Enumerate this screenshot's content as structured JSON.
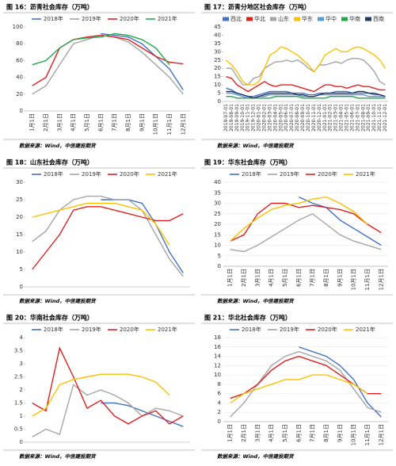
{
  "chart_data": [
    {
      "type": "line",
      "title": "图 16：沥青社会库存（万吨）",
      "source": "数据来源：Wind，中信建投期货",
      "categories": [
        "1月1日",
        "2月1日",
        "3月1日",
        "4月1日",
        "5月1日",
        "6月1日",
        "7月1日",
        "8月1日",
        "9月1日",
        "10月1日",
        "11月1日",
        "12月1日"
      ],
      "series": [
        {
          "name": "2018年",
          "color": "#4472c4",
          "values": [
            null,
            null,
            null,
            null,
            null,
            92,
            90,
            88,
            80,
            65,
            50,
            25
          ]
        },
        {
          "name": "2019年",
          "color": "#a5a5a5",
          "values": [
            20,
            30,
            55,
            80,
            85,
            90,
            88,
            82,
            70,
            55,
            40,
            20
          ]
        },
        {
          "name": "2020年",
          "color": "#e02020",
          "values": [
            30,
            40,
            75,
            85,
            88,
            90,
            88,
            85,
            75,
            65,
            58,
            56
          ]
        },
        {
          "name": "2021年",
          "color": "#22a84a",
          "values": [
            55,
            60,
            75,
            85,
            87,
            88,
            92,
            90,
            85,
            75,
            55,
            null
          ]
        }
      ],
      "ylim": [
        0,
        100
      ],
      "yticks": [
        0,
        20,
        40,
        60,
        80,
        100
      ],
      "grid": false,
      "legend": "top"
    },
    {
      "type": "line",
      "title": "图 17：沥青分地区社会库存（万吨）",
      "source": "数据来源：Wind，中信建投期货",
      "categories": [
        "2019-07-01",
        "2019-08-01",
        "2019-09-01",
        "2019-10-01",
        "2019-11-01",
        "2019-12-01",
        "2020-01-01",
        "2020-02-01",
        "2020-03-01",
        "2020-04-01",
        "2020-05-01",
        "2020-06-01",
        "2020-07-01",
        "2020-08-01",
        "2020-09-01",
        "2020-10-01",
        "2020-11-01",
        "2020-12-01",
        "2021-01-01",
        "2021-02-01",
        "2021-03-01",
        "2021-04-01",
        "2021-05-01",
        "2021-06-01",
        "2021-07-01",
        "2021-08-01",
        "2021-09-01",
        "2021-10-01",
        "2021-11-01",
        "2021-12-01"
      ],
      "series": [
        {
          "name": "西北",
          "color": "#4472c4",
          "values": [
            8,
            7,
            5,
            4,
            3,
            3,
            4,
            5,
            6,
            6,
            6,
            6,
            5,
            5,
            5,
            4,
            4,
            5,
            5,
            5,
            6,
            6,
            6,
            5,
            5,
            5,
            5,
            4,
            4,
            3
          ]
        },
        {
          "name": "华北",
          "color": "#e02020",
          "values": [
            15,
            14,
            10,
            8,
            6,
            8,
            10,
            12,
            10,
            9,
            10,
            10,
            10,
            9,
            8,
            7,
            6,
            8,
            10,
            10,
            9,
            9,
            8,
            9,
            10,
            9,
            9,
            8,
            7,
            7
          ]
        },
        {
          "name": "山东",
          "color": "#a5a5a5",
          "values": [
            20,
            20,
            15,
            10,
            10,
            14,
            15,
            20,
            22,
            24,
            24,
            25,
            24,
            25,
            23,
            20,
            18,
            22,
            22,
            23,
            24,
            23,
            25,
            26,
            26,
            25,
            22,
            18,
            12,
            10
          ]
        },
        {
          "name": "华东",
          "color": "#ffc000",
          "values": [
            25,
            22,
            18,
            12,
            10,
            10,
            12,
            20,
            28,
            30,
            33,
            32,
            30,
            28,
            25,
            22,
            18,
            22,
            28,
            30,
            32,
            30,
            30,
            32,
            33,
            32,
            30,
            28,
            25,
            20
          ]
        },
        {
          "name": "华中",
          "color": "#5b9bd5",
          "values": [
            5,
            5,
            4,
            3,
            2,
            2,
            3,
            3,
            4,
            4,
            4,
            4,
            4,
            4,
            3,
            3,
            3,
            4,
            4,
            4,
            4,
            4,
            4,
            4,
            4,
            4,
            3,
            3,
            3,
            3
          ]
        },
        {
          "name": "华南",
          "color": "#22a84a",
          "values": [
            3,
            3,
            2,
            2,
            2,
            2,
            2,
            2,
            2,
            3,
            3,
            3,
            3,
            3,
            2,
            2,
            2,
            2,
            2,
            3,
            3,
            3,
            3,
            3,
            2,
            2,
            2,
            2,
            2,
            2
          ]
        },
        {
          "name": "西南",
          "color": "#203864",
          "values": [
            6,
            6,
            5,
            4,
            3,
            2,
            3,
            4,
            5,
            5,
            5,
            5,
            5,
            4,
            4,
            3,
            3,
            4,
            5,
            5,
            5,
            5,
            5,
            5,
            6,
            6,
            5,
            5,
            4,
            3
          ]
        }
      ],
      "ylim": [
        0,
        45
      ],
      "yticks": [
        0,
        5,
        10,
        15,
        20,
        25,
        30,
        35,
        40,
        45
      ],
      "grid": false,
      "legend": "top"
    },
    {
      "type": "line",
      "title": "图 18：山东社会库存（万吨）",
      "source": "数据来源：Wind，中信建投期货",
      "categories": [
        null,
        null,
        null,
        null,
        null,
        null,
        null,
        null,
        null,
        null,
        null,
        null
      ],
      "series": [
        {
          "name": "2018年",
          "color": "#4472c4",
          "values": [
            null,
            null,
            null,
            null,
            null,
            25,
            25,
            25,
            24,
            18,
            10,
            4
          ]
        },
        {
          "name": "2019年",
          "color": "#a5a5a5",
          "values": [
            13,
            16,
            22,
            25,
            26,
            26,
            25,
            25,
            22,
            15,
            8,
            3
          ]
        },
        {
          "name": "2020年",
          "color": "#e02020",
          "values": [
            5,
            10,
            15,
            22,
            23,
            23,
            22,
            21,
            20,
            19,
            19,
            21
          ]
        },
        {
          "name": "2021年",
          "color": "#ffc000",
          "values": [
            20,
            21,
            22,
            23,
            24,
            24,
            24,
            23,
            22,
            18,
            12,
            null
          ]
        }
      ],
      "ylim": [
        0,
        30
      ],
      "yticks": [
        0,
        5,
        10,
        15,
        20,
        25,
        30
      ],
      "grid": false,
      "legend": "top"
    },
    {
      "type": "line",
      "title": "图 19：华东社会库存（万吨）",
      "source": "数据来源：Wind，中信建投期货",
      "categories": [
        "1月1日",
        "2月1日",
        "3月1日",
        "4月1日",
        "5月1日",
        "6月1日",
        "7月1日",
        "8月1日",
        "9月1日",
        "10月1日",
        "11月1日",
        "12月1日"
      ],
      "series": [
        {
          "name": "2018年",
          "color": "#4472c4",
          "values": [
            null,
            null,
            null,
            null,
            null,
            33,
            30,
            28,
            22,
            18,
            14,
            10
          ]
        },
        {
          "name": "2019年",
          "color": "#a5a5a5",
          "values": [
            8,
            7,
            10,
            14,
            18,
            22,
            25,
            20,
            15,
            12,
            10,
            8
          ]
        },
        {
          "name": "2020年",
          "color": "#e02020",
          "values": [
            12,
            15,
            25,
            30,
            30,
            28,
            29,
            28,
            27,
            25,
            20,
            16
          ]
        },
        {
          "name": "2021年",
          "color": "#ffc000",
          "values": [
            12,
            18,
            23,
            27,
            29,
            30,
            32,
            33,
            30,
            26,
            20,
            null
          ]
        }
      ],
      "ylim": [
        0,
        40
      ],
      "yticks": [
        0,
        5,
        10,
        15,
        20,
        25,
        30,
        35,
        40
      ],
      "grid": true,
      "legend": "top"
    },
    {
      "type": "line",
      "title": "图 20：华南社会库存（万吨）",
      "source": "数据来源：Wind，中信建投期货",
      "categories": [
        null,
        null,
        null,
        null,
        null,
        null,
        null,
        null,
        null,
        null,
        null,
        null
      ],
      "series": [
        {
          "name": "2018年",
          "color": "#4472c4",
          "values": [
            null,
            null,
            null,
            null,
            null,
            1.5,
            1.5,
            1.4,
            1.2,
            1.0,
            0.8,
            0.6
          ]
        },
        {
          "name": "2019年",
          "color": "#a5a5a5",
          "values": [
            0.2,
            0.5,
            0.3,
            2.2,
            1.8,
            2.0,
            1.8,
            1.5,
            1.0,
            1.3,
            1.2,
            1.0
          ]
        },
        {
          "name": "2020年",
          "color": "#e02020",
          "values": [
            1.5,
            1.2,
            3.6,
            2.5,
            1.3,
            1.6,
            1.0,
            0.7,
            1.0,
            1.2,
            0.7,
            1.0
          ]
        },
        {
          "name": "2021年",
          "color": "#ffc000",
          "values": [
            1.0,
            1.3,
            2.2,
            2.4,
            2.5,
            2.6,
            2.6,
            2.6,
            2.5,
            2.3,
            1.8,
            null
          ]
        }
      ],
      "ylim": [
        0,
        4
      ],
      "yticks": [
        0,
        0.5,
        1,
        1.5,
        2,
        2.5,
        3,
        3.5,
        4
      ],
      "grid": false,
      "legend": "top"
    },
    {
      "type": "line",
      "title": "图 21：华北社会库存（万吨）",
      "source": "数据来源：Wind，中信建投期货",
      "categories": [
        "1月1日",
        "2月1日",
        "3月1日",
        "4月1日",
        "5月1日",
        "6月1日",
        "7月1日",
        "8月1日",
        "9月1日",
        "10月1日",
        "11月1日",
        "12月1日"
      ],
      "series": [
        {
          "name": "2018年",
          "color": "#4472c4",
          "values": [
            null,
            null,
            null,
            null,
            null,
            16,
            15,
            14,
            12,
            9,
            4,
            1
          ]
        },
        {
          "name": "2019年",
          "color": "#a5a5a5",
          "values": [
            1,
            4,
            8,
            12,
            14,
            15,
            14,
            13,
            11,
            7,
            3,
            2
          ]
        },
        {
          "name": "2020年",
          "color": "#e02020",
          "values": [
            5,
            6,
            8,
            11,
            13,
            14,
            13,
            12,
            10,
            8,
            6,
            6
          ]
        },
        {
          "name": "2021年",
          "color": "#ffc000",
          "values": [
            4,
            6,
            7,
            8,
            9,
            9,
            10,
            10,
            9,
            8,
            6,
            null
          ]
        }
      ],
      "ylim": [
        0,
        18
      ],
      "yticks": [
        0,
        2,
        4,
        6,
        8,
        10,
        12,
        14,
        16,
        18
      ],
      "grid": true,
      "legend": "top"
    }
  ]
}
